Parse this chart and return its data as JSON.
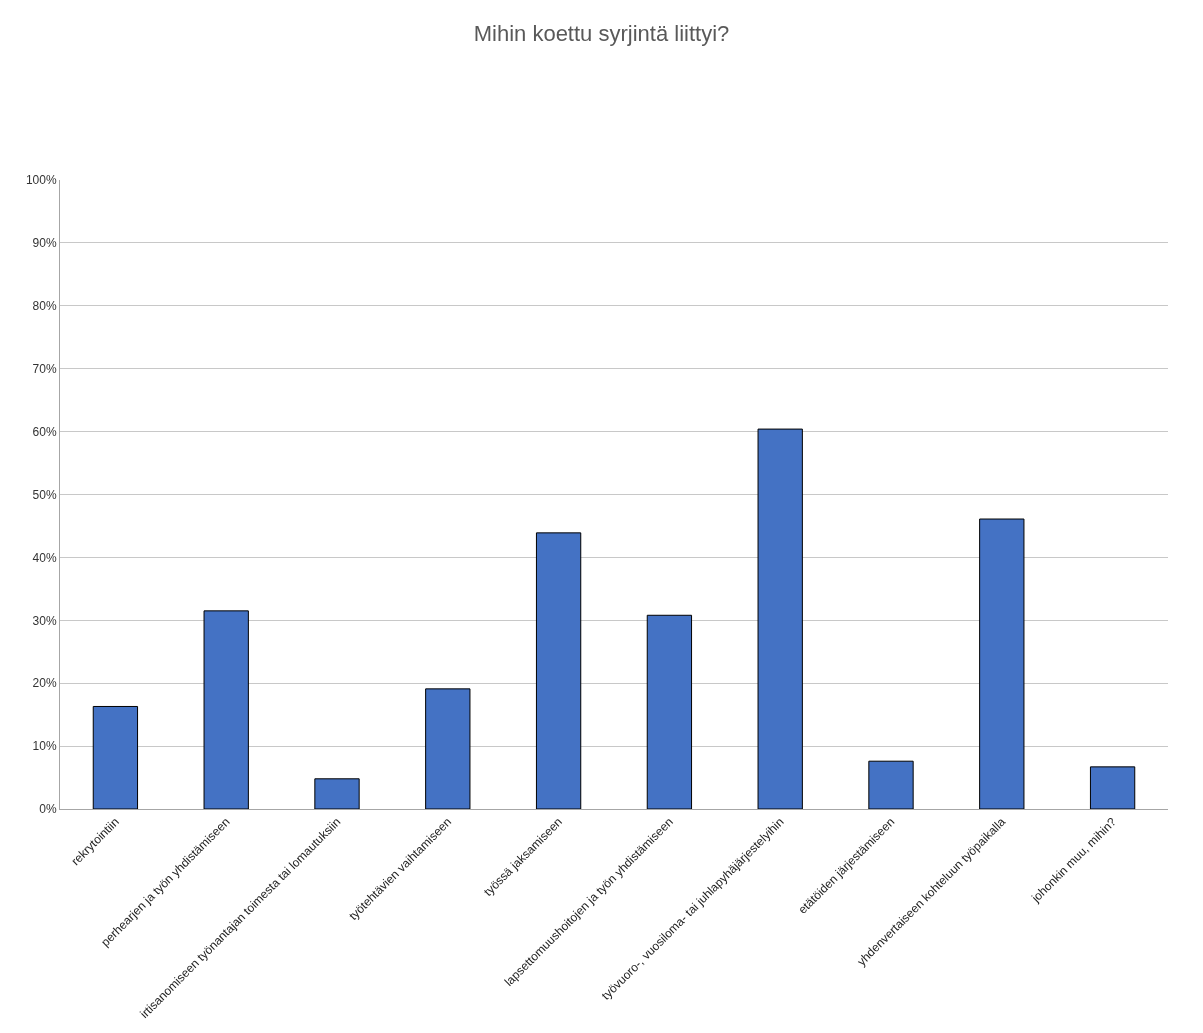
{
  "chart_data": {
    "type": "bar",
    "title": "Mihin koettu syrjintä liittyi?",
    "categories": [
      "rekrytointiin",
      "perhearjen ja työn yhdistämiseen",
      "irtisanomiseen työnantajan toimesta tai lomautuksiin",
      "työtehtävien vaihtamiseen",
      "työssä jaksamiseen",
      "lapsettomuushoitojen ja työn yhdistämiseen",
      "työvuoro-, vuosiloma- tai juhlapyhäjärjestelyihin",
      "etätöiden järjestämiseen",
      "yhdenvertaiseen kohteluun työpaikalla",
      "johonkin muu, mihin?"
    ],
    "values": [
      16.3,
      31.5,
      4.8,
      19.1,
      43.9,
      30.8,
      60.4,
      7.6,
      46.1,
      6.7
    ],
    "color": "#4472c4",
    "ylim": [
      0,
      100
    ],
    "yticks": [
      {
        "value": 0,
        "label": "0%"
      },
      {
        "value": 10,
        "label": "10%"
      },
      {
        "value": 20,
        "label": "20%"
      },
      {
        "value": 30,
        "label": "30%"
      },
      {
        "value": 40,
        "label": "40%"
      },
      {
        "value": 50,
        "label": "50%"
      },
      {
        "value": 60,
        "label": "60%"
      },
      {
        "value": 70,
        "label": "70%"
      },
      {
        "value": 80,
        "label": "80%"
      },
      {
        "value": 90,
        "label": "90%"
      },
      {
        "value": 100,
        "label": "100%"
      }
    ],
    "grid": "y",
    "legend": false
  }
}
